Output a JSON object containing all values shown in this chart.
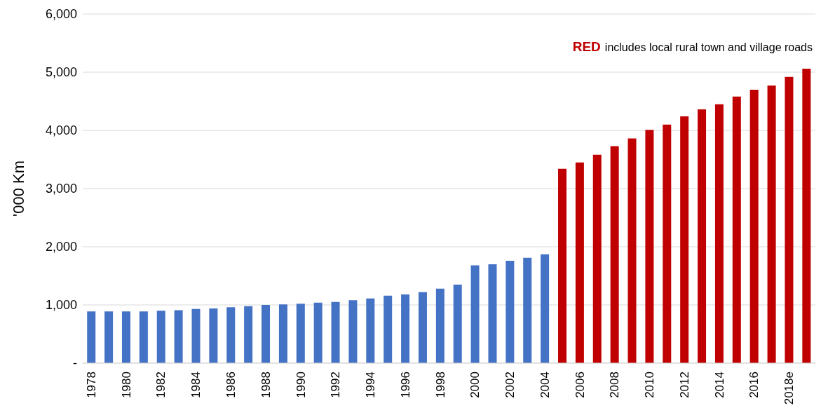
{
  "chart_data": {
    "type": "bar",
    "ylabel": "'000 Km",
    "categories": [
      "1978",
      null,
      "1980",
      null,
      "1982",
      null,
      "1984",
      null,
      "1986",
      null,
      "1988",
      null,
      "1990",
      null,
      "1992",
      null,
      "1994",
      null,
      "1996",
      null,
      "1998",
      null,
      "2000",
      null,
      "2002",
      null,
      "2004",
      null,
      "2006",
      null,
      "2008",
      null,
      "2010",
      null,
      "2012",
      null,
      "2014",
      null,
      "2016",
      null,
      "2018e",
      null
    ],
    "values": [
      890,
      890,
      890,
      890,
      900,
      910,
      930,
      940,
      960,
      980,
      1000,
      1010,
      1020,
      1040,
      1050,
      1080,
      1110,
      1160,
      1180,
      1220,
      1280,
      1350,
      1680,
      1700,
      1760,
      1810,
      1870,
      3340,
      3450,
      3580,
      3730,
      3860,
      4010,
      4100,
      4240,
      4360,
      4450,
      4580,
      4700,
      4770,
      4920,
      5060
    ],
    "colors": [
      "#4472c4",
      "#4472c4",
      "#4472c4",
      "#4472c4",
      "#4472c4",
      "#4472c4",
      "#4472c4",
      "#4472c4",
      "#4472c4",
      "#4472c4",
      "#4472c4",
      "#4472c4",
      "#4472c4",
      "#4472c4",
      "#4472c4",
      "#4472c4",
      "#4472c4",
      "#4472c4",
      "#4472c4",
      "#4472c4",
      "#4472c4",
      "#4472c4",
      "#4472c4",
      "#4472c4",
      "#4472c4",
      "#4472c4",
      "#4472c4",
      "#c00000",
      "#c00000",
      "#c00000",
      "#c00000",
      "#c00000",
      "#c00000",
      "#c00000",
      "#c00000",
      "#c00000",
      "#c00000",
      "#c00000",
      "#c00000",
      "#c00000",
      "#c00000",
      "#c00000"
    ],
    "ylim": [
      0,
      6000
    ],
    "yticks": [
      {
        "value": 0,
        "label": "-"
      },
      {
        "value": 1000,
        "label": "1,000"
      },
      {
        "value": 2000,
        "label": "2,000"
      },
      {
        "value": 3000,
        "label": "3,000"
      },
      {
        "value": 4000,
        "label": "4,000"
      },
      {
        "value": 5000,
        "label": "5,000"
      },
      {
        "value": 6000,
        "label": "6,000"
      }
    ],
    "grid": "y",
    "legend": false,
    "annotations": [
      "RED",
      "includes local rural town and village roads"
    ]
  }
}
